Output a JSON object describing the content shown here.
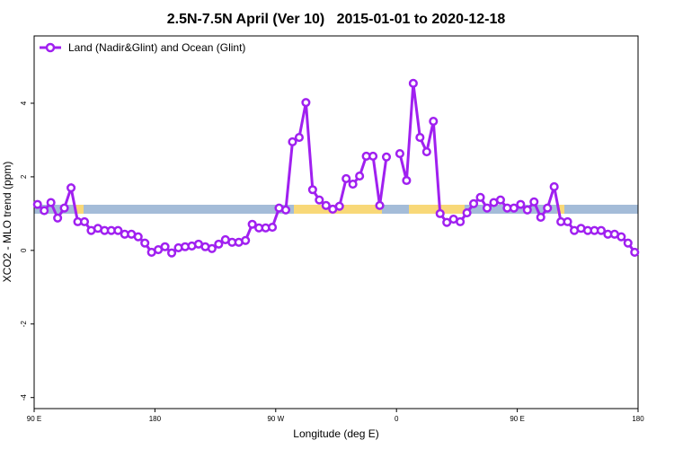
{
  "chart_data": {
    "type": "line",
    "title": "2.5N-7.5N April (Ver 10)   2015-01-01 to 2020-12-18",
    "x_label": "Longitude (deg E)",
    "y_label": "XCO2 - MLO trend (ppm)",
    "x": [
      92.5,
      97.5,
      102.5,
      107.5,
      112.5,
      117.5,
      122.5,
      127.5,
      132.5,
      137.5,
      142.5,
      147.5,
      152.5,
      157.5,
      162.5,
      167.5,
      172.5,
      177.5,
      182.5,
      187.5,
      192.5,
      197.5,
      202.5,
      207.5,
      212.5,
      217.5,
      222.5,
      227.5,
      232.5,
      237.5,
      242.5,
      247.5,
      252.5,
      257.5,
      262.5,
      267.5,
      272.5,
      277.5,
      282.5,
      287.5,
      292.5,
      297.5,
      302.5,
      307.5,
      312.5,
      317.5,
      322.5,
      327.5,
      332.5,
      337.5,
      342.5,
      347.5,
      352.5,
      357.5,
      362.5,
      367.5,
      372.5,
      377.5,
      382.5,
      387.5,
      392.5,
      397.5,
      402.5,
      407.5,
      412.5,
      417.5,
      422.5,
      427.5,
      432.5,
      437.5,
      442.5,
      447.5,
      452.5,
      457.5,
      462.5,
      467.5,
      472.5,
      477.5,
      482.5,
      487.5,
      492.5,
      497.5,
      502.5,
      507.5,
      512.5,
      517.5,
      522.5,
      527.5,
      532.5,
      537.5
    ],
    "series": [
      {
        "name": "Land (Nadir&Glint) and Ocean (Glint)",
        "color": "#a020f0",
        "values": [
          1.25,
          1.08,
          1.3,
          0.88,
          1.15,
          1.7,
          0.78,
          0.78,
          0.54,
          0.6,
          0.54,
          0.54,
          0.54,
          0.44,
          0.44,
          0.37,
          0.2,
          -0.05,
          0.02,
          0.1,
          -0.07,
          0.07,
          0.1,
          0.12,
          0.17,
          0.1,
          0.05,
          0.17,
          0.29,
          0.22,
          0.22,
          0.27,
          0.71,
          0.61,
          0.61,
          0.63,
          1.15,
          1.1,
          2.95,
          3.07,
          4.02,
          1.65,
          1.37,
          1.22,
          1.12,
          1.2,
          1.95,
          1.8,
          2.02,
          2.56,
          2.56,
          1.22,
          2.54,
          null,
          2.63,
          1.9,
          4.54,
          3.07,
          2.68,
          3.51,
          1.0,
          0.76,
          0.85,
          0.78,
          1.02,
          1.27,
          1.44,
          1.15,
          1.3,
          1.37,
          1.15,
          1.15,
          1.25,
          1.1,
          1.32,
          0.9,
          1.15,
          1.73,
          0.78,
          0.78,
          0.54,
          0.6,
          0.54,
          0.54,
          0.54,
          0.44,
          0.44,
          0.37,
          0.2,
          -0.05
        ]
      }
    ],
    "xlim": [
      90,
      540
    ],
    "xticks": [
      {
        "value": 90,
        "label": "90 E"
      },
      180,
      {
        "value": 270,
        "label": "90 W"
      },
      {
        "value": 360,
        "label": "0"
      },
      {
        "value": 450,
        "label": "90 E"
      },
      {
        "value": 540,
        "label": "180"
      }
    ],
    "ylim": [
      -4.3,
      5.83
    ],
    "yticks": [
      -4,
      -2,
      0,
      2,
      4
    ],
    "legend": "top-left"
  }
}
